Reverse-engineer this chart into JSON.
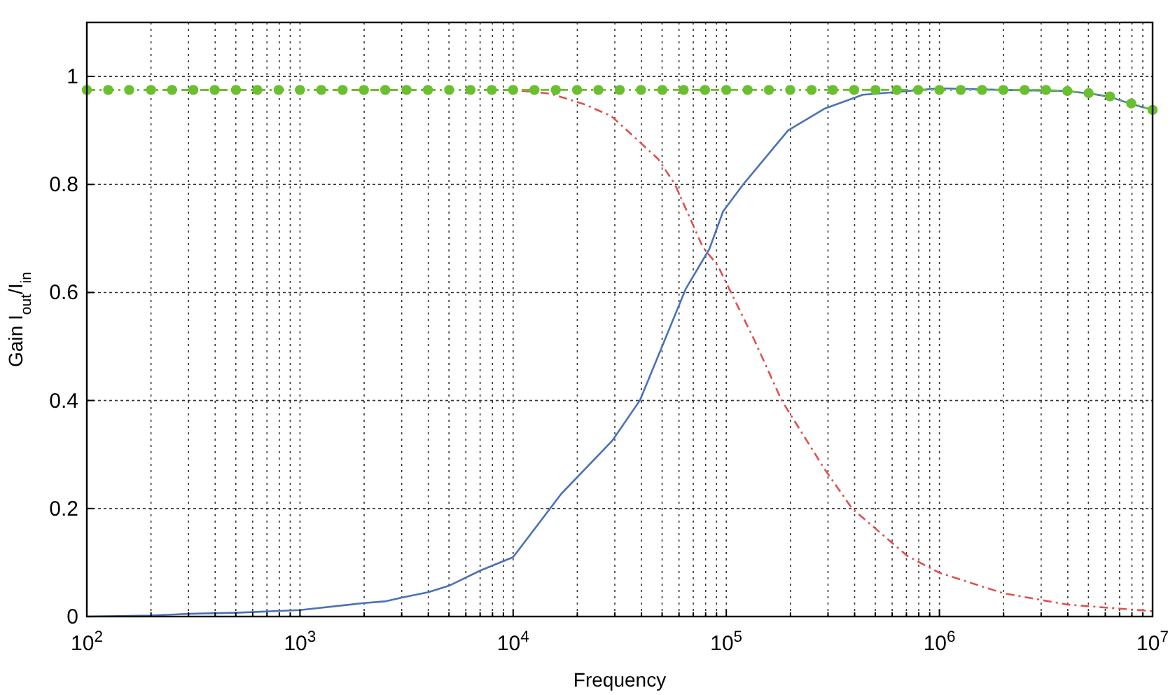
{
  "chart_data": {
    "type": "line",
    "xlabel": "Frequency",
    "ylabel": "Gain I$_{out}$/I$_{in}$",
    "log": "x",
    "grid": true,
    "xlim": [
      100,
      10000000
    ],
    "ylim": [
      0,
      1.1
    ],
    "xticks": [
      {
        "value": 100,
        "label": "10$^{2}$"
      },
      {
        "value": 200,
        "label": null
      },
      {
        "value": 300,
        "label": null
      },
      {
        "value": 400,
        "label": null
      },
      {
        "value": 500,
        "label": null
      },
      {
        "value": 600,
        "label": null
      },
      {
        "value": 700,
        "label": null
      },
      {
        "value": 800,
        "label": null
      },
      {
        "value": 900,
        "label": null
      },
      {
        "value": 1000,
        "label": "10$^{3}$"
      },
      {
        "value": 2000,
        "label": null
      },
      {
        "value": 3000,
        "label": null
      },
      {
        "value": 4000,
        "label": null
      },
      {
        "value": 5000,
        "label": null
      },
      {
        "value": 6000,
        "label": null
      },
      {
        "value": 7000,
        "label": null
      },
      {
        "value": 8000,
        "label": null
      },
      {
        "value": 9000,
        "label": null
      },
      {
        "value": 10000,
        "label": "10$^{4}$"
      },
      {
        "value": 20000,
        "label": null
      },
      {
        "value": 30000,
        "label": null
      },
      {
        "value": 40000,
        "label": null
      },
      {
        "value": 50000,
        "label": null
      },
      {
        "value": 60000,
        "label": null
      },
      {
        "value": 70000,
        "label": null
      },
      {
        "value": 80000,
        "label": null
      },
      {
        "value": 90000,
        "label": null
      },
      {
        "value": 100000,
        "label": "10$^{5}$"
      },
      {
        "value": 200000,
        "label": null
      },
      {
        "value": 300000,
        "label": null
      },
      {
        "value": 400000,
        "label": null
      },
      {
        "value": 500000,
        "label": null
      },
      {
        "value": 600000,
        "label": null
      },
      {
        "value": 700000,
        "label": null
      },
      {
        "value": 800000,
        "label": null
      },
      {
        "value": 900000,
        "label": null
      },
      {
        "value": 1000000,
        "label": "10$^{6}$"
      },
      {
        "value": 2000000,
        "label": null
      },
      {
        "value": 3000000,
        "label": null
      },
      {
        "value": 4000000,
        "label": null
      },
      {
        "value": 5000000,
        "label": null
      },
      {
        "value": 6000000,
        "label": null
      },
      {
        "value": 7000000,
        "label": null
      },
      {
        "value": 8000000,
        "label": null
      },
      {
        "value": 9000000,
        "label": null
      },
      {
        "value": 10000000,
        "label": "10$^{7}$"
      }
    ],
    "yticks": [
      0,
      0.2,
      0.4,
      0.6,
      0.8,
      1
    ],
    "series": [
      {
        "color": "#4a72b8",
        "line_style": "solid",
        "marker": "none",
        "x": [
          100,
          200,
          300,
          500,
          1000,
          2000,
          2500,
          3000,
          4000,
          5000,
          7000,
          10000,
          16800,
          29100,
          39300,
          50000,
          64600,
          83200,
          96600,
          120000,
          195000,
          288000,
          437000,
          1000000,
          2000000,
          3900000,
          4900000,
          6200000,
          7800000,
          10000000
        ],
        "values": [
          0,
          0.002,
          0.005,
          0.007,
          0.012,
          0.025,
          0.028,
          0.035,
          0.045,
          0.057,
          0.085,
          0.11,
          0.227,
          0.325,
          0.4,
          0.5,
          0.607,
          0.68,
          0.75,
          0.8,
          0.9,
          0.94,
          0.966,
          0.978,
          0.975,
          0.973,
          0.969,
          0.963,
          0.95,
          0.938
        ]
      },
      {
        "color": "#e05050",
        "line_style": "dashed",
        "marker": "none",
        "x": [
          100,
          10000,
          15000,
          21400,
          28800,
          38900,
          47900,
          57500,
          77600,
          91200,
          135000,
          182000,
          288000,
          389000,
          708000,
          1000000,
          2000000,
          4000000,
          10000000
        ],
        "values": [
          0.975,
          0.975,
          0.968,
          0.949,
          0.927,
          0.88,
          0.847,
          0.8,
          0.684,
          0.65,
          0.513,
          0.4,
          0.274,
          0.2,
          0.112,
          0.081,
          0.043,
          0.022,
          0.01
        ]
      },
      {
        "color": "#6abf2f",
        "line_style": "dashed",
        "marker": "circle",
        "x": [
          100,
          126,
          158,
          200,
          251,
          316,
          398,
          501,
          631,
          794,
          1000,
          1259,
          1585,
          1995,
          2512,
          3162,
          3981,
          5012,
          6310,
          7943,
          10000,
          12589,
          15849,
          19953,
          25119,
          31623,
          39811,
          50119,
          63096,
          79433,
          100000,
          125893,
          158489,
          199526,
          251189,
          316228,
          398107,
          501187,
          630957,
          794328,
          1000000,
          1258925,
          1584893,
          1995262,
          2511886,
          3162278,
          3981072,
          5011872,
          6309573,
          7943282,
          10000000
        ],
        "values": [
          0.975,
          0.975,
          0.975,
          0.975,
          0.975,
          0.975,
          0.975,
          0.975,
          0.975,
          0.975,
          0.975,
          0.975,
          0.975,
          0.975,
          0.975,
          0.975,
          0.975,
          0.975,
          0.975,
          0.975,
          0.975,
          0.975,
          0.975,
          0.975,
          0.975,
          0.975,
          0.975,
          0.975,
          0.975,
          0.975,
          0.975,
          0.975,
          0.975,
          0.975,
          0.975,
          0.975,
          0.975,
          0.975,
          0.975,
          0.975,
          0.975,
          0.975,
          0.975,
          0.975,
          0.975,
          0.975,
          0.973,
          0.969,
          0.963,
          0.95,
          0.938
        ]
      }
    ]
  }
}
